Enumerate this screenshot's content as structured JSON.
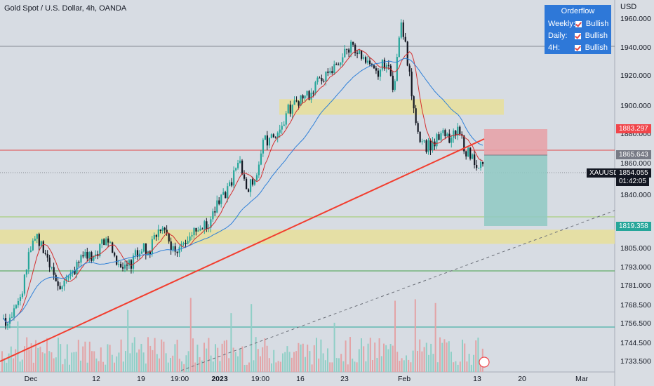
{
  "header": {
    "title": "Gold Spot / U.S. Dollar, 4h, OANDA"
  },
  "orderflow": {
    "title": "Orderflow",
    "rows": [
      {
        "label": "Weekly:",
        "value": "Bullish"
      },
      {
        "label": "Daily:",
        "value": "Bullish"
      },
      {
        "label": "4H:",
        "value": "Bullish"
      }
    ]
  },
  "axis": {
    "currency": "USD",
    "y_ticks": [
      "1960.000",
      "1940.000",
      "1920.000",
      "1900.000",
      "1880.000",
      "1860.000",
      "1840.000",
      "1805.000",
      "1793.000",
      "1781.000",
      "1768.500",
      "1756.500",
      "1744.500",
      "1733.500"
    ],
    "x_ticks": [
      "Dec",
      "12",
      "19",
      "19:00",
      "2023",
      "19:00",
      "16",
      "23",
      "Feb",
      "13",
      "20",
      "Mar"
    ]
  },
  "price_badges": {
    "stop": "1883.297",
    "entry": "1865.643",
    "symbol": "XAUUSD",
    "last": "1854.055",
    "countdown": "01:42:05",
    "target": "1819.358"
  },
  "colors": {
    "background": "#d7dce3",
    "bull": "#26a69a",
    "bear": "#131722",
    "zone": "#e8df9a",
    "trendline": "#f23d2e",
    "ma_fast": "#d32f2f",
    "ma_slow": "#2f80d8",
    "stop_zone": "#e8a0a6",
    "target_zone": "#8fc9c3",
    "orderflow_bg": "#2e78d8"
  },
  "chart_data": {
    "type": "candlestick",
    "title": "Gold Spot / U.S. Dollar, 4h, OANDA",
    "symbol": "XAUUSD",
    "timeframe": "4h",
    "ylim": [
      1728,
      1966
    ],
    "x_ticks": [
      "Dec",
      "12",
      "19",
      "19:00",
      "2023",
      "19:00",
      "16",
      "23",
      "Feb",
      "13",
      "20",
      "Mar"
    ],
    "close_path": [
      1745,
      1750,
      1760,
      1790,
      1805,
      1798,
      1780,
      1772,
      1776,
      1785,
      1795,
      1790,
      1800,
      1803,
      1788,
      1782,
      1790,
      1800,
      1795,
      1813,
      1810,
      1795,
      1800,
      1808,
      1815,
      1812,
      1825,
      1833,
      1845,
      1858,
      1840,
      1848,
      1872,
      1878,
      1880,
      1895,
      1900,
      1908,
      1905,
      1920,
      1918,
      1928,
      1935,
      1943,
      1932,
      1925,
      1920,
      1930,
      1912,
      1958,
      1918,
      1880,
      1870,
      1872,
      1878,
      1874,
      1880,
      1866,
      1860,
      1855
    ],
    "current_price": 1854.055,
    "horizontal_levels": [
      1942,
      1869,
      1824,
      1792,
      1756
    ],
    "zones": [
      {
        "from": 1892,
        "to": 1903
      },
      {
        "from": 1801,
        "to": 1811
      }
    ],
    "trendlines": [
      {
        "name": "rising support",
        "style": "solid"
      },
      {
        "name": "lower channel",
        "style": "dashed"
      }
    ],
    "position": {
      "side": "short",
      "entry": 1865.643,
      "stop": 1883.297,
      "target": 1819.358
    },
    "moving_averages": [
      "fast (red)",
      "slow (blue)"
    ]
  }
}
